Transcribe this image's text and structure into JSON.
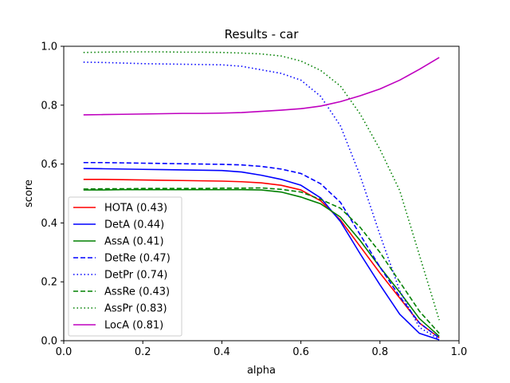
{
  "chart_data": {
    "type": "line",
    "title": "Results - car",
    "xlabel": "alpha",
    "ylabel": "score",
    "xlim": [
      0.0,
      1.0
    ],
    "ylim": [
      0.0,
      1.0
    ],
    "xticks": [
      "0.0",
      "0.2",
      "0.4",
      "0.6",
      "0.8",
      "1.0"
    ],
    "yticks": [
      "0.0",
      "0.2",
      "0.4",
      "0.6",
      "0.8",
      "1.0"
    ],
    "grid": false,
    "legend_position": "lower-left",
    "x": [
      0.05,
      0.1,
      0.15,
      0.2,
      0.25,
      0.3,
      0.35,
      0.4,
      0.45,
      0.5,
      0.55,
      0.6,
      0.65,
      0.7,
      0.75,
      0.8,
      0.85,
      0.9,
      0.95
    ],
    "series": [
      {
        "name": "HOTA (0.43)",
        "color": "#ff0000",
        "dash": "solid",
        "values": [
          0.548,
          0.548,
          0.547,
          0.546,
          0.545,
          0.544,
          0.543,
          0.542,
          0.54,
          0.536,
          0.528,
          0.512,
          0.475,
          0.41,
          0.32,
          0.23,
          0.145,
          0.06,
          0.01
        ]
      },
      {
        "name": "DetA (0.44)",
        "color": "#0000ff",
        "dash": "solid",
        "values": [
          0.585,
          0.584,
          0.583,
          0.582,
          0.581,
          0.58,
          0.579,
          0.578,
          0.573,
          0.562,
          0.548,
          0.528,
          0.485,
          0.405,
          0.295,
          0.19,
          0.09,
          0.025,
          0.003
        ]
      },
      {
        "name": "AssA (0.41)",
        "color": "#008000",
        "dash": "solid",
        "values": [
          0.512,
          0.512,
          0.513,
          0.513,
          0.513,
          0.513,
          0.513,
          0.513,
          0.513,
          0.512,
          0.505,
          0.488,
          0.465,
          0.42,
          0.34,
          0.25,
          0.165,
          0.075,
          0.015
        ]
      },
      {
        "name": "DetRe (0.47)",
        "color": "#0000ff",
        "dash": "dashed",
        "values": [
          0.605,
          0.605,
          0.604,
          0.603,
          0.602,
          0.601,
          0.6,
          0.599,
          0.597,
          0.592,
          0.583,
          0.568,
          0.533,
          0.47,
          0.36,
          0.25,
          0.15,
          0.06,
          0.01
        ]
      },
      {
        "name": "DetPr (0.74)",
        "color": "#0000ff",
        "dash": "dotted",
        "values": [
          0.946,
          0.945,
          0.943,
          0.941,
          0.94,
          0.939,
          0.938,
          0.937,
          0.932,
          0.92,
          0.908,
          0.885,
          0.83,
          0.73,
          0.56,
          0.36,
          0.17,
          0.045,
          0.005
        ]
      },
      {
        "name": "AssRe (0.43)",
        "color": "#008000",
        "dash": "dashed",
        "values": [
          0.515,
          0.516,
          0.516,
          0.517,
          0.517,
          0.517,
          0.517,
          0.518,
          0.518,
          0.519,
          0.514,
          0.505,
          0.48,
          0.45,
          0.385,
          0.3,
          0.2,
          0.1,
          0.025
        ]
      },
      {
        "name": "AssPr (0.83)",
        "color": "#008000",
        "dash": "dotted",
        "values": [
          0.979,
          0.98,
          0.981,
          0.981,
          0.981,
          0.98,
          0.98,
          0.979,
          0.977,
          0.974,
          0.967,
          0.95,
          0.918,
          0.865,
          0.77,
          0.65,
          0.51,
          0.29,
          0.07
        ]
      },
      {
        "name": "LocA (0.81)",
        "color": "#bf00bf",
        "dash": "solid",
        "values": [
          0.767,
          0.768,
          0.769,
          0.77,
          0.771,
          0.772,
          0.772,
          0.773,
          0.775,
          0.779,
          0.783,
          0.788,
          0.797,
          0.812,
          0.832,
          0.855,
          0.885,
          0.922,
          0.962
        ]
      }
    ]
  }
}
